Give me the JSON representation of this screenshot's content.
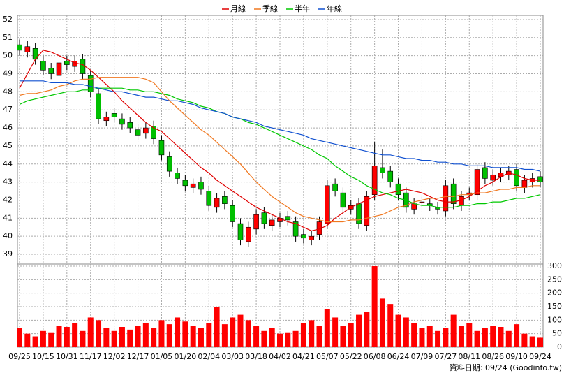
{
  "chart_data": {
    "type": "candlestick",
    "legend": "top",
    "categories": [
      "09/25",
      null,
      null,
      "10/15",
      null,
      null,
      "10/31",
      null,
      null,
      "11/17",
      null,
      null,
      "12/02",
      null,
      null,
      "12/17",
      null,
      null,
      "01/05",
      null,
      null,
      "01/20",
      null,
      null,
      "02/04",
      null,
      null,
      "03/03",
      null,
      null,
      "03/18",
      null,
      null,
      "04/02",
      null,
      null,
      "04/21",
      null,
      null,
      "05/07",
      null,
      null,
      "05/22",
      null,
      null,
      "06/08",
      null,
      null,
      "06/24",
      null,
      null,
      "07/09",
      null,
      null,
      "07/27",
      null,
      null,
      "08/11",
      null,
      null,
      "08/26",
      null,
      null,
      "09/10",
      null,
      null,
      "09/24"
    ],
    "open": [
      50.6,
      50.2,
      50.4,
      49.7,
      49.3,
      48.9,
      49.7,
      49.4,
      49.8,
      48.9,
      47.9,
      46.4,
      46.8,
      46.5,
      46.3,
      45.9,
      45.7,
      46.1,
      45.3,
      44.4,
      43.5,
      43.1,
      42.7,
      43.0,
      42.5,
      41.6,
      42.2,
      41.7,
      40.7,
      39.7,
      40.4,
      41.3,
      40.6,
      40.8,
      41.1,
      40.8,
      40.1,
      39.8,
      40.1,
      40.7,
      42.9,
      42.4,
      41.5,
      41.8,
      40.6,
      42.3,
      43.8,
      43.6,
      42.9,
      42.4,
      41.5,
      41.9,
      41.8,
      41.6,
      41.4,
      42.9,
      41.7,
      42.3,
      42.3,
      43.8,
      43.1,
      43.3,
      43.4,
      43.7,
      42.7,
      43.0,
      43.3
    ],
    "high": [
      50.9,
      50.8,
      50.7,
      50.0,
      49.6,
      49.9,
      50.0,
      50.0,
      50.1,
      49.2,
      48.2,
      46.9,
      47.1,
      46.8,
      46.6,
      46.2,
      46.3,
      46.4,
      45.6,
      44.7,
      43.8,
      43.4,
      43.2,
      43.3,
      42.8,
      42.4,
      42.5,
      42.0,
      41.0,
      40.8,
      41.5,
      41.6,
      41.2,
      41.3,
      41.4,
      41.1,
      40.4,
      40.3,
      41.1,
      43.1,
      43.2,
      42.7,
      42.0,
      42.1,
      42.5,
      45.2,
      44.8,
      43.9,
      43.2,
      42.7,
      42.1,
      42.2,
      42.1,
      41.9,
      43.1,
      43.2,
      42.5,
      42.7,
      44.0,
      44.1,
      43.7,
      43.8,
      43.9,
      44.0,
      43.4,
      43.5,
      43.6
    ],
    "low": [
      50.0,
      49.9,
      49.5,
      48.9,
      48.7,
      48.6,
      49.2,
      49.1,
      48.7,
      47.7,
      46.2,
      46.1,
      46.3,
      45.9,
      45.7,
      45.3,
      45.4,
      45.1,
      44.2,
      43.3,
      42.9,
      42.5,
      42.4,
      42.3,
      41.4,
      41.3,
      41.5,
      40.5,
      39.5,
      39.4,
      40.1,
      40.4,
      40.3,
      40.5,
      40.6,
      39.7,
      39.6,
      39.5,
      39.8,
      40.4,
      42.2,
      41.3,
      41.2,
      40.4,
      40.3,
      42.0,
      43.2,
      42.7,
      42.0,
      41.3,
      41.2,
      41.6,
      41.4,
      41.2,
      41.1,
      41.5,
      41.4,
      42.0,
      42.0,
      42.9,
      42.8,
      43.0,
      43.1,
      42.5,
      42.4,
      42.7,
      42.7
    ],
    "close": [
      50.3,
      50.5,
      49.8,
      49.2,
      49.0,
      49.6,
      49.5,
      49.7,
      49.0,
      48.0,
      46.5,
      46.6,
      46.6,
      46.2,
      46.0,
      45.6,
      46.0,
      45.4,
      44.5,
      43.6,
      43.2,
      42.8,
      42.9,
      42.6,
      41.7,
      42.1,
      41.8,
      40.8,
      39.8,
      40.5,
      41.2,
      40.7,
      40.9,
      41.0,
      40.9,
      40.0,
      39.9,
      40.0,
      40.8,
      42.8,
      42.5,
      41.6,
      41.7,
      40.7,
      42.2,
      43.9,
      43.5,
      43.0,
      42.3,
      41.6,
      41.8,
      41.9,
      41.7,
      41.5,
      42.8,
      41.8,
      42.2,
      42.4,
      43.7,
      43.2,
      43.4,
      43.5,
      43.6,
      42.8,
      43.1,
      43.2,
      43.0
    ],
    "up_color": "#ff0000",
    "down_color": "#00c000",
    "series": [
      {
        "name": "月線",
        "color": "#e00000",
        "values": [
          48.2,
          49.0,
          49.8,
          50.3,
          50.2,
          50.0,
          49.8,
          49.6,
          49.5,
          49.2,
          48.8,
          48.4,
          48.0,
          47.5,
          47.1,
          46.7,
          46.3,
          46.0,
          45.8,
          45.4,
          45.0,
          44.6,
          44.2,
          43.8,
          43.5,
          43.1,
          42.8,
          42.5,
          42.2,
          41.9,
          41.6,
          41.4,
          41.2,
          41.0,
          40.8,
          40.7,
          40.5,
          40.3,
          40.4,
          40.6,
          41.0,
          41.3,
          41.6,
          41.8,
          42.0,
          42.2,
          42.3,
          42.4,
          42.5,
          42.6,
          42.5,
          42.4,
          42.2,
          42.0,
          41.9,
          41.9,
          42.0,
          42.2,
          42.5,
          42.8,
          43.0,
          43.3,
          43.5,
          43.4,
          43.2,
          43.1,
          43.1
        ]
      },
      {
        "name": "季線",
        "color": "#f07820",
        "values": [
          47.8,
          47.9,
          47.9,
          48.0,
          48.1,
          48.3,
          48.4,
          48.6,
          48.7,
          48.7,
          48.8,
          48.8,
          48.8,
          48.8,
          48.8,
          48.8,
          48.7,
          48.5,
          48.0,
          47.5,
          47.1,
          46.7,
          46.3,
          45.9,
          45.6,
          45.2,
          44.8,
          44.4,
          44.0,
          43.5,
          43.0,
          42.6,
          42.2,
          41.9,
          41.6,
          41.3,
          41.1,
          41.0,
          40.9,
          40.8,
          40.8,
          40.8,
          40.9,
          40.9,
          41.0,
          41.1,
          41.2,
          41.4,
          41.6,
          41.7,
          41.9,
          42.0,
          42.1,
          42.1,
          42.2,
          42.2,
          42.3,
          42.3,
          42.4,
          42.4,
          42.5,
          42.6,
          42.6,
          42.7,
          42.7,
          42.8,
          42.8
        ]
      },
      {
        "name": "半年",
        "color": "#00c800",
        "values": [
          47.3,
          47.5,
          47.6,
          47.7,
          47.8,
          47.9,
          48.0,
          48.0,
          48.1,
          48.1,
          48.2,
          48.2,
          48.2,
          48.2,
          48.1,
          48.1,
          48.0,
          48.0,
          47.9,
          47.8,
          47.6,
          47.5,
          47.4,
          47.2,
          47.1,
          46.9,
          46.8,
          46.6,
          46.5,
          46.3,
          46.2,
          46.0,
          45.8,
          45.6,
          45.4,
          45.2,
          45.0,
          44.8,
          44.5,
          44.3,
          43.9,
          43.6,
          43.3,
          43.1,
          42.8,
          42.6,
          42.4,
          42.3,
          42.1,
          42.0,
          41.8,
          41.7,
          41.7,
          41.6,
          41.6,
          41.6,
          41.7,
          41.7,
          41.8,
          41.8,
          41.9,
          41.9,
          42.0,
          42.1,
          42.1,
          42.2,
          42.3
        ]
      },
      {
        "name": "年線",
        "color": "#1050d0",
        "values": [
          48.6,
          48.6,
          48.6,
          48.6,
          48.5,
          48.5,
          48.5,
          48.4,
          48.4,
          48.3,
          48.2,
          48.1,
          48.0,
          48.0,
          47.9,
          47.8,
          47.7,
          47.7,
          47.6,
          47.5,
          47.5,
          47.4,
          47.3,
          47.1,
          47.0,
          46.9,
          46.8,
          46.6,
          46.5,
          46.4,
          46.3,
          46.1,
          46.0,
          45.9,
          45.8,
          45.7,
          45.6,
          45.4,
          45.3,
          45.2,
          45.1,
          45.0,
          44.9,
          44.8,
          44.7,
          44.6,
          44.5,
          44.5,
          44.4,
          44.3,
          44.3,
          44.2,
          44.2,
          44.1,
          44.1,
          44.0,
          44.0,
          43.9,
          43.9,
          43.9,
          43.8,
          43.8,
          43.8,
          43.8,
          43.7,
          43.7,
          43.6
        ]
      }
    ],
    "ylim": [
      38.46,
      52.23
    ],
    "yticks": [
      39,
      40,
      41,
      42,
      43,
      44,
      45,
      46,
      47,
      48,
      49,
      50,
      51,
      52
    ],
    "grid": true,
    "volume": {
      "color": "#ff0000",
      "values": [
        70,
        50,
        40,
        60,
        55,
        80,
        75,
        90,
        60,
        110,
        100,
        70,
        60,
        75,
        65,
        80,
        90,
        70,
        100,
        85,
        110,
        95,
        80,
        70,
        90,
        150,
        85,
        110,
        120,
        100,
        80,
        60,
        70,
        50,
        55,
        60,
        90,
        100,
        80,
        140,
        110,
        80,
        90,
        120,
        130,
        300,
        180,
        160,
        120,
        110,
        90,
        70,
        80,
        60,
        70,
        120,
        80,
        90,
        60,
        70,
        80,
        75,
        60,
        85,
        50,
        40,
        35
      ],
      "ylim": [
        0,
        300
      ],
      "yticks": [
        0,
        50,
        100,
        150,
        200,
        250,
        300
      ]
    },
    "footnote": "資料日期: 09/24 (Goodinfo.tw)"
  }
}
